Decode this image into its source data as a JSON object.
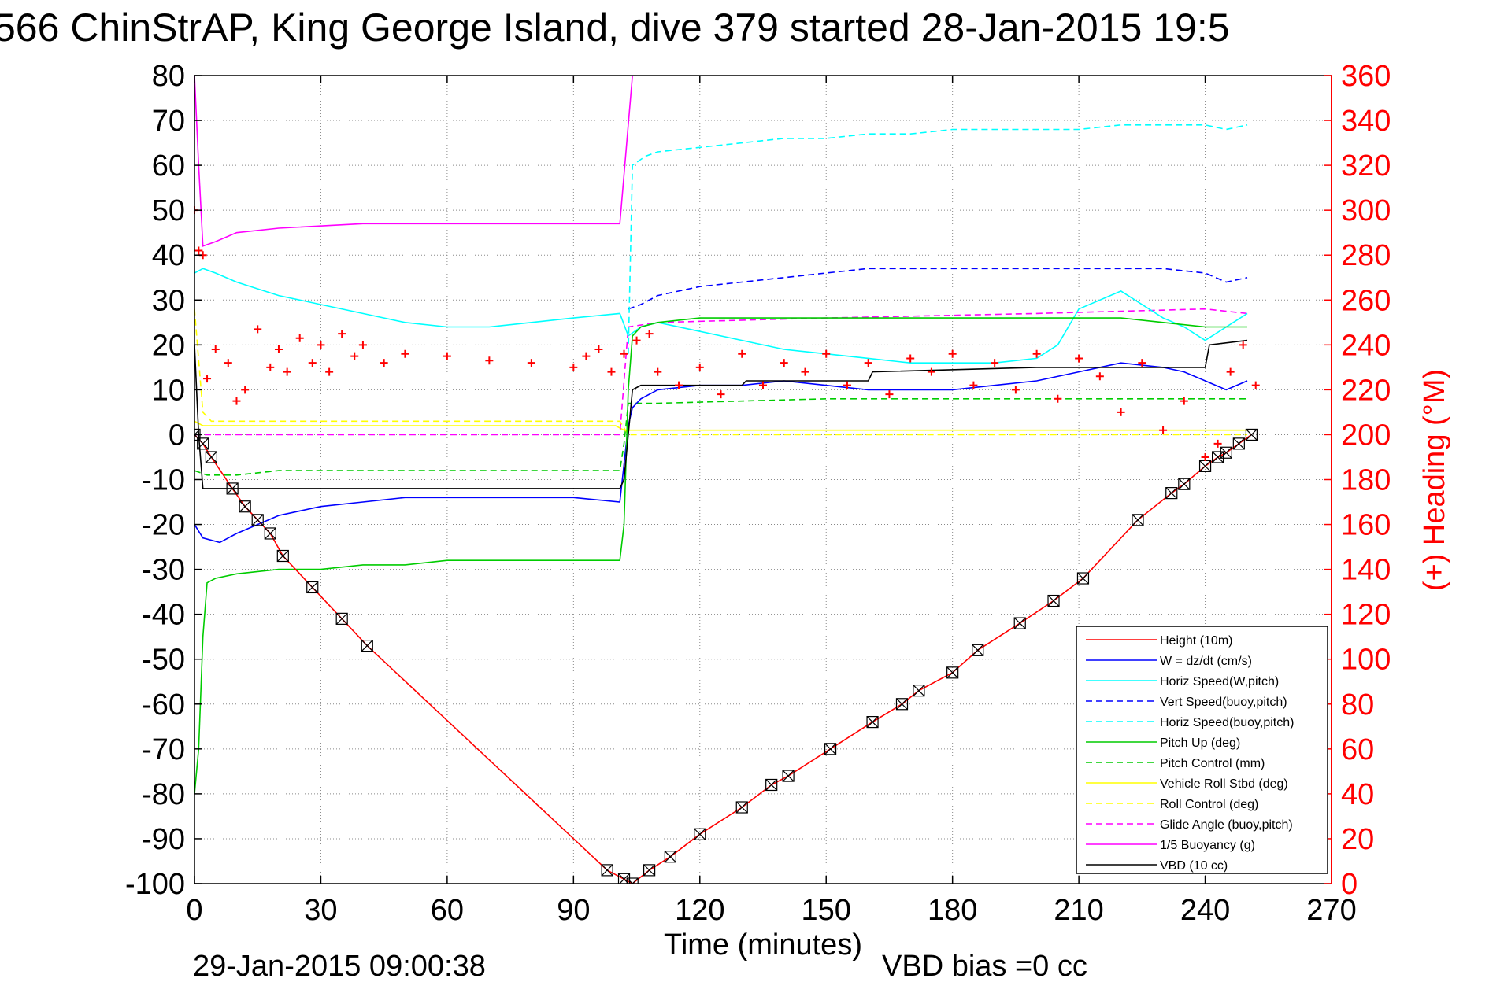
{
  "chart_data": {
    "type": "line",
    "title": "566 ChinStrAP, King George Island, dive 379 started 28-Jan-2015 19:5",
    "xlabel": "Time (minutes)",
    "ylabel_right": "(+) Heading (°M)",
    "xlim": [
      0,
      270
    ],
    "ylim": [
      -100,
      80
    ],
    "ylim_right": [
      0,
      360
    ],
    "xticks": [
      0,
      30,
      60,
      90,
      120,
      150,
      180,
      210,
      240,
      270
    ],
    "yticks": [
      80,
      70,
      60,
      50,
      40,
      30,
      20,
      10,
      0,
      -10,
      -20,
      -30,
      -40,
      -50,
      -60,
      -70,
      -80,
      -90,
      -100
    ],
    "yticks_right": [
      360,
      340,
      320,
      300,
      280,
      260,
      240,
      220,
      200,
      180,
      160,
      140,
      120,
      100,
      80,
      60,
      40,
      20,
      0
    ],
    "grid": true,
    "footer_date": "29-Jan-2015 09:00:38",
    "footer_note": "VBD bias =0 cc",
    "legend_location": "lower-right",
    "series": [
      {
        "name": "Height (10m)",
        "color": "#ff0000",
        "dash": "solid",
        "marker": "boxed-x",
        "x": [
          0,
          2,
          4,
          9,
          12,
          15,
          18,
          21,
          28,
          35,
          41,
          98,
          102,
          104,
          108,
          113,
          120,
          130,
          137,
          141,
          151,
          161,
          168,
          172,
          180,
          186,
          196,
          204,
          211,
          224,
          232,
          235,
          240,
          243,
          245,
          248,
          251
        ],
        "y": [
          0,
          -2,
          -5,
          -12,
          -16,
          -19,
          -22,
          -27,
          -34,
          -41,
          -47,
          -97,
          -99,
          -100,
          -97,
          -94,
          -89,
          -83,
          -78,
          -76,
          -70,
          -64,
          -60,
          -57,
          -53,
          -48,
          -42,
          -37,
          -32,
          -19,
          -13,
          -11,
          -7,
          -5,
          -4,
          -2,
          0
        ]
      },
      {
        "name": "W = dz/dt (cm/s)",
        "color": "#0000ff",
        "dash": "solid",
        "x": [
          0,
          2,
          6,
          10,
          15,
          20,
          30,
          40,
          50,
          60,
          70,
          80,
          90,
          101,
          103,
          104,
          106,
          110,
          120,
          130,
          140,
          150,
          160,
          170,
          180,
          190,
          200,
          210,
          220,
          230,
          235,
          240,
          245,
          250
        ],
        "y": [
          -20,
          -23,
          -24,
          -22,
          -20,
          -18,
          -16,
          -15,
          -14,
          -14,
          -14,
          -14,
          -14,
          -15,
          2,
          6,
          8,
          10,
          11,
          11,
          12,
          11,
          10,
          10,
          10,
          11,
          12,
          14,
          16,
          15,
          14,
          12,
          10,
          12
        ]
      },
      {
        "name": "Horiz Speed(W,pitch)",
        "color": "#00ffff",
        "dash": "solid",
        "x": [
          0,
          2,
          5,
          10,
          20,
          30,
          40,
          50,
          60,
          70,
          80,
          90,
          101,
          103,
          106,
          110,
          120,
          130,
          140,
          150,
          160,
          170,
          180,
          190,
          200,
          205,
          210,
          220,
          230,
          235,
          240,
          245,
          250
        ],
        "y": [
          36,
          37,
          36,
          34,
          31,
          29,
          27,
          25,
          24,
          24,
          25,
          26,
          27,
          22,
          24,
          25,
          23,
          21,
          19,
          18,
          17,
          16,
          16,
          16,
          17,
          20,
          28,
          32,
          26,
          24,
          21,
          24,
          27
        ]
      },
      {
        "name": "Vert Speed(buoy,pitch)",
        "color": "#0000ff",
        "dash": "dashed",
        "x": [
          103,
          106,
          110,
          120,
          130,
          140,
          150,
          160,
          170,
          180,
          190,
          200,
          210,
          220,
          230,
          240,
          245,
          250
        ],
        "y": [
          28,
          29,
          31,
          33,
          34,
          35,
          36,
          37,
          37,
          37,
          37,
          37,
          37,
          37,
          37,
          36,
          34,
          35
        ]
      },
      {
        "name": "Horiz Speed(buoy,pitch)",
        "color": "#00ffff",
        "dash": "dashed",
        "x": [
          103,
          104,
          107,
          110,
          120,
          130,
          140,
          150,
          160,
          170,
          180,
          190,
          200,
          210,
          220,
          230,
          240,
          245,
          250
        ],
        "y": [
          18,
          60,
          62,
          63,
          64,
          65,
          66,
          66,
          67,
          67,
          68,
          68,
          68,
          68,
          69,
          69,
          69,
          68,
          69
        ]
      },
      {
        "name": "Pitch Up (deg)",
        "color": "#00cc00",
        "dash": "solid",
        "x": [
          0,
          1,
          2,
          3,
          5,
          10,
          20,
          30,
          40,
          50,
          60,
          70,
          80,
          90,
          101,
          102,
          103,
          104,
          106,
          110,
          120,
          130,
          140,
          150,
          160,
          170,
          180,
          190,
          200,
          210,
          220,
          230,
          240,
          245,
          250
        ],
        "y": [
          -80,
          -70,
          -45,
          -33,
          -32,
          -31,
          -30,
          -30,
          -29,
          -29,
          -28,
          -28,
          -28,
          -28,
          -28,
          -20,
          10,
          22,
          24,
          25,
          26,
          26,
          26,
          26,
          26,
          26,
          26,
          26,
          26,
          26,
          26,
          25,
          24,
          24,
          24
        ]
      },
      {
        "name": "Pitch Control (mm)",
        "color": "#00cc00",
        "dash": "dashed",
        "x": [
          0,
          3,
          10,
          20,
          40,
          60,
          80,
          101,
          102,
          103,
          110,
          150,
          200,
          240,
          250
        ],
        "y": [
          -8,
          -9,
          -9,
          -8,
          -8,
          -8,
          -8,
          -8,
          -2,
          7,
          7,
          8,
          8,
          8,
          8
        ]
      },
      {
        "name": "Vehicle Roll Stbd (deg)",
        "color": "#ffff00",
        "dash": "solid",
        "x": [
          0,
          2,
          5,
          10,
          20,
          40,
          60,
          80,
          100,
          102,
          104,
          110,
          150,
          200,
          230,
          240,
          250
        ],
        "y": [
          3,
          2,
          2,
          2,
          2,
          2,
          2,
          2,
          2,
          1,
          1,
          1,
          1,
          1,
          1,
          1,
          1
        ]
      },
      {
        "name": "Roll Control (deg)",
        "color": "#ffff00",
        "dash": "dashed",
        "x": [
          0,
          2,
          4,
          10,
          50,
          101,
          103,
          110,
          200,
          250
        ],
        "y": [
          28,
          5,
          3,
          3,
          3,
          3,
          0,
          0,
          0,
          0
        ]
      },
      {
        "name": "Glide Angle (buoy,pitch)",
        "color": "#ff00ff",
        "dash": "dashed",
        "x": [
          0,
          101,
          103,
          110,
          150,
          200,
          240,
          250
        ],
        "y": [
          0,
          0,
          24,
          25,
          26,
          27,
          28,
          27
        ]
      },
      {
        "name": "1/5 Buoyancy (g)",
        "color": "#ff00ff",
        "dash": "solid",
        "x": [
          0,
          1,
          2,
          5,
          10,
          20,
          40,
          60,
          80,
          101,
          104
        ],
        "y": [
          80,
          60,
          42,
          43,
          45,
          46,
          47,
          47,
          47,
          47,
          80
        ]
      },
      {
        "name": "VBD (10 cc)",
        "color": "#000000",
        "dash": "solid",
        "x": [
          0,
          1,
          2,
          101,
          102,
          103,
          104,
          106,
          130,
          131,
          160,
          161,
          200,
          240,
          241,
          250
        ],
        "y": [
          20,
          0,
          -12,
          -12,
          -10,
          0,
          10,
          11,
          11,
          12,
          12,
          14,
          15,
          15,
          20,
          21
        ]
      },
      {
        "name": "(+) Heading",
        "color": "#ff0000",
        "axis": "right",
        "dash": "none",
        "marker": "plus",
        "x": [
          0,
          1,
          2,
          3,
          5,
          8,
          10,
          12,
          15,
          18,
          20,
          22,
          25,
          28,
          30,
          32,
          35,
          38,
          40,
          45,
          50,
          60,
          70,
          80,
          90,
          93,
          96,
          99,
          102,
          105,
          108,
          110,
          115,
          120,
          125,
          130,
          135,
          140,
          145,
          150,
          155,
          160,
          165,
          170,
          175,
          180,
          185,
          190,
          195,
          200,
          205,
          210,
          215,
          220,
          225,
          230,
          235,
          240,
          243,
          246,
          249,
          252
        ],
        "y": [
          300,
          282,
          280,
          225,
          238,
          232,
          215,
          220,
          247,
          230,
          238,
          228,
          243,
          232,
          240,
          228,
          245,
          235,
          240,
          232,
          236,
          235,
          233,
          232,
          230,
          235,
          238,
          228,
          236,
          242,
          245,
          228,
          222,
          230,
          218,
          236,
          222,
          232,
          228,
          236,
          222,
          232,
          218,
          234,
          228,
          236,
          222,
          232,
          220,
          236,
          216,
          234,
          226,
          210,
          232,
          202,
          215,
          190,
          196,
          228,
          240,
          222
        ]
      }
    ]
  }
}
